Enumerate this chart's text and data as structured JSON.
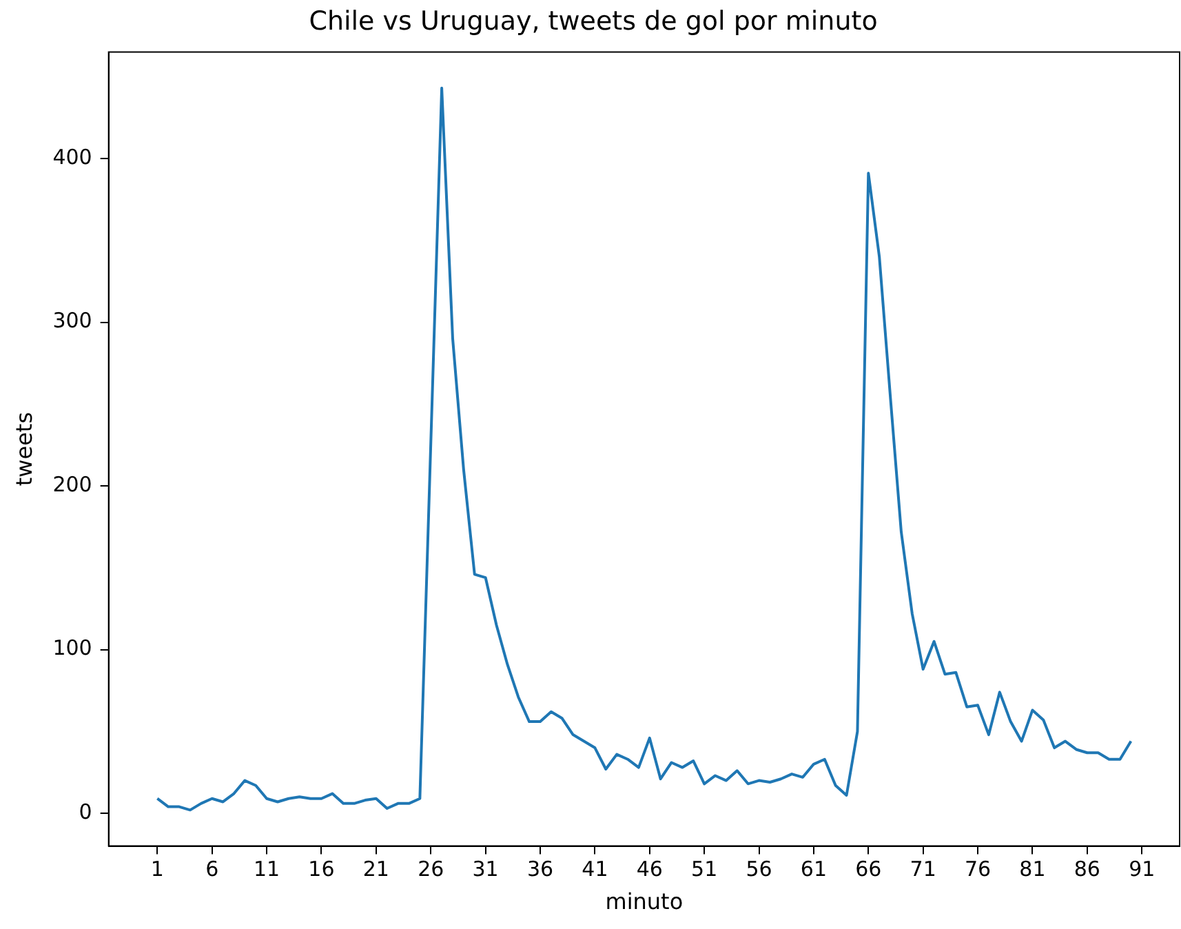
{
  "chart_data": {
    "type": "line",
    "title": "Chile vs Uruguay, tweets de gol por minuto",
    "xlabel": "minuto",
    "ylabel": "tweets",
    "x": [
      1,
      2,
      3,
      4,
      5,
      6,
      7,
      8,
      9,
      10,
      11,
      12,
      13,
      14,
      15,
      16,
      17,
      18,
      19,
      20,
      21,
      22,
      23,
      24,
      25,
      26,
      27,
      28,
      29,
      30,
      31,
      32,
      33,
      34,
      35,
      36,
      37,
      38,
      39,
      40,
      41,
      42,
      43,
      44,
      45,
      46,
      47,
      48,
      49,
      50,
      51,
      52,
      53,
      54,
      55,
      56,
      57,
      58,
      59,
      60,
      61,
      62,
      63,
      64,
      65,
      66,
      67,
      68,
      69,
      70,
      71,
      72,
      73,
      74,
      75,
      76,
      77,
      78,
      79,
      80,
      81,
      82,
      83,
      84,
      85,
      86,
      87,
      88,
      89,
      90
    ],
    "series": [
      {
        "color": "#1f77b4",
        "values": [
          9,
          4,
          4,
          2,
          6,
          9,
          7,
          12,
          20,
          17,
          9,
          7,
          9,
          10,
          9,
          9,
          12,
          6,
          6,
          8,
          9,
          3,
          6,
          6,
          9,
          226,
          443,
          290,
          210,
          146,
          144,
          115,
          91,
          71,
          56,
          56,
          62,
          58,
          48,
          44,
          40,
          27,
          36,
          33,
          28,
          46,
          21,
          31,
          28,
          32,
          18,
          23,
          20,
          26,
          18,
          20,
          19,
          21,
          24,
          22,
          30,
          33,
          17,
          11,
          50,
          391,
          340,
          255,
          172,
          122,
          88,
          105,
          85,
          86,
          65,
          66,
          48,
          74,
          56,
          44,
          63,
          57,
          40,
          44,
          39,
          37,
          37,
          33,
          33,
          44
        ]
      }
    ],
    "xlim": [
      -3.45,
      94.45
    ],
    "xticks": [
      1,
      6,
      11,
      16,
      21,
      26,
      31,
      36,
      41,
      46,
      51,
      56,
      61,
      66,
      71,
      76,
      81,
      86,
      91
    ],
    "ylim": [
      -20,
      465
    ],
    "yticks": [
      0,
      100,
      200,
      300,
      400
    ],
    "grid": false,
    "legend": false,
    "marker": "none",
    "line_style": "solid"
  }
}
